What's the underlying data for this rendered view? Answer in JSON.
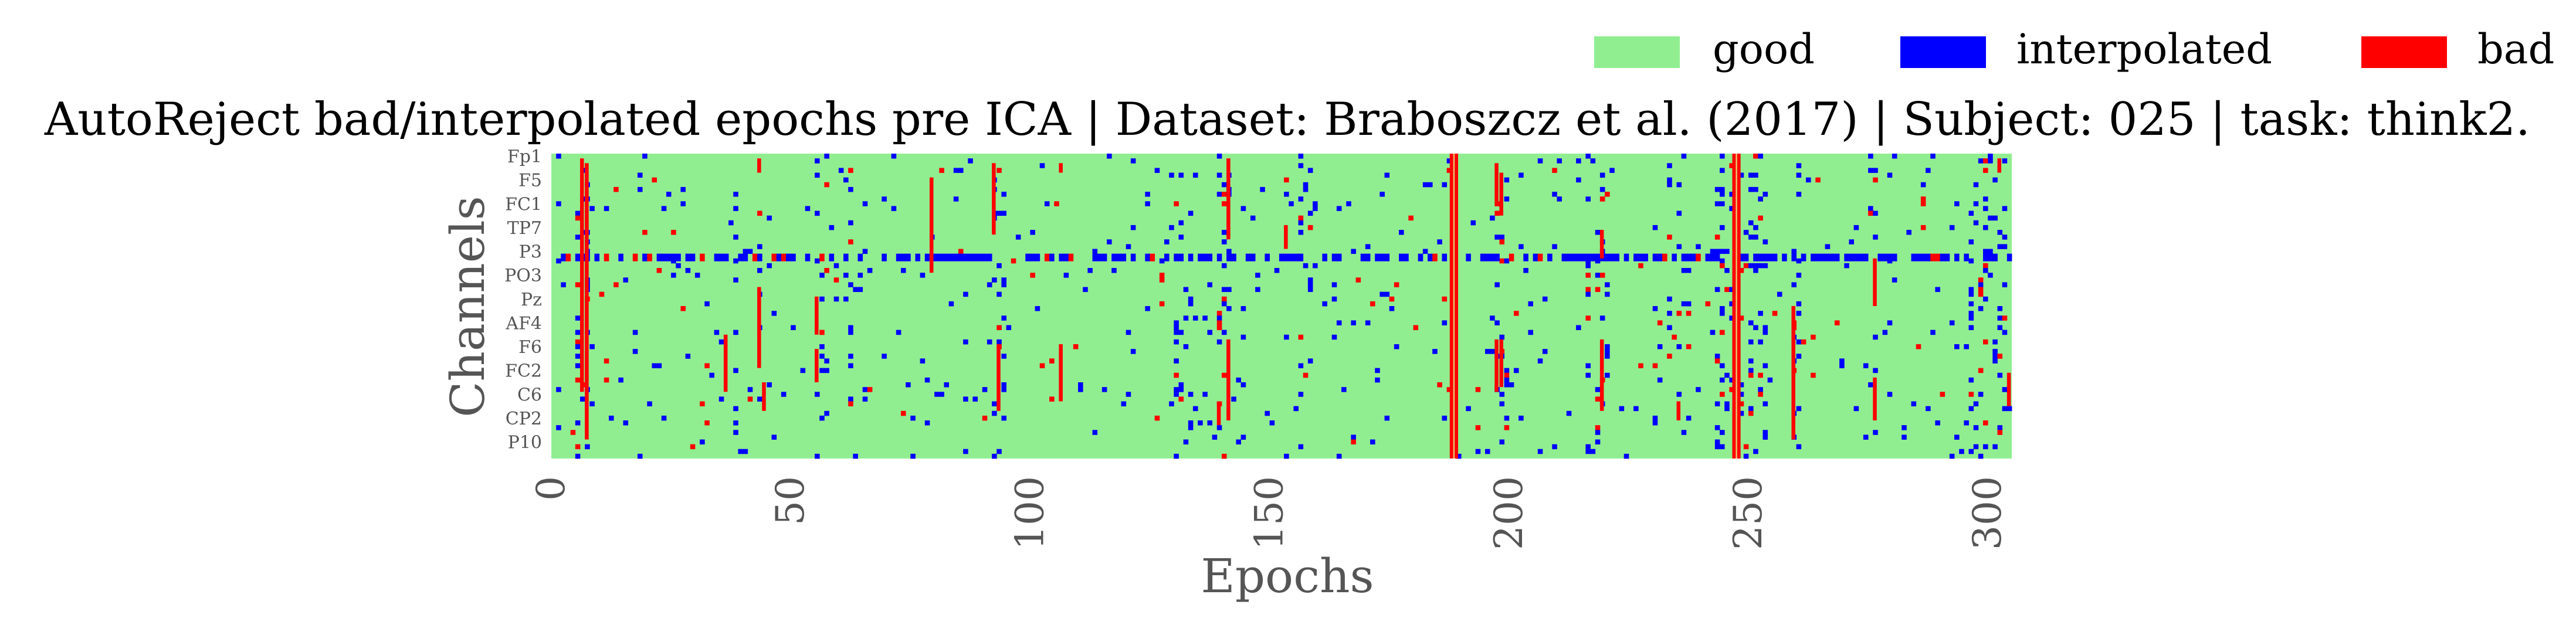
{
  "chart_data": {
    "type": "heatmap",
    "title": "AutoReject bad/interpolated epochs pre ICA | Dataset: Braboszcz et al. (2017) | Subject: 025 | task: think2.",
    "xlabel": "Epochs",
    "ylabel": "Channels",
    "x_ticks": [
      0,
      50,
      100,
      150,
      200,
      250,
      300
    ],
    "xlim": [
      0,
      305
    ],
    "channel_tick_labels": [
      "Fp1",
      "F5",
      "FC1",
      "TP7",
      "P3",
      "PO3",
      "Pz",
      "AF4",
      "F6",
      "FC2",
      "C6",
      "CP2",
      "P10"
    ],
    "n_channels": 64,
    "n_epochs": 305,
    "grid": false,
    "legend": {
      "placement": "top-right",
      "entries": [
        {
          "label": "good",
          "color": "#90EE90"
        },
        {
          "label": "interpolated",
          "color": "#0000FF"
        },
        {
          "label": "bad",
          "color": "#FF0000"
        }
      ]
    },
    "bad_epochs_full": [
      188,
      247
    ],
    "bad_segments": [
      {
        "epoch": 6,
        "channels": [
          1,
          50
        ]
      },
      {
        "epoch": 7,
        "channels": [
          2,
          60
        ]
      },
      {
        "epoch": 43,
        "channels": [
          1,
          4
        ]
      },
      {
        "epoch": 43,
        "channels": [
          28,
          45
        ]
      },
      {
        "epoch": 44,
        "channels": [
          48,
          54
        ]
      },
      {
        "epoch": 36,
        "channels": [
          38,
          50
        ]
      },
      {
        "epoch": 55,
        "channels": [
          30,
          38
        ]
      },
      {
        "epoch": 55,
        "channels": [
          41,
          48
        ]
      },
      {
        "epoch": 79,
        "channels": [
          5,
          25
        ]
      },
      {
        "epoch": 92,
        "channels": [
          2,
          17
        ]
      },
      {
        "epoch": 93,
        "channels": [
          41,
          54
        ]
      },
      {
        "epoch": 106,
        "channels": [
          2,
          4
        ]
      },
      {
        "epoch": 106,
        "channels": [
          40,
          52
        ]
      },
      {
        "epoch": 141,
        "channels": [
          1,
          18
        ]
      },
      {
        "epoch": 141,
        "channels": [
          39,
          56
        ]
      },
      {
        "epoch": 139,
        "channels": [
          52,
          57
        ]
      },
      {
        "epoch": 153,
        "channels": [
          15,
          20
        ]
      },
      {
        "epoch": 197,
        "channels": [
          2,
          10
        ]
      },
      {
        "epoch": 198,
        "channels": [
          4,
          13
        ]
      },
      {
        "epoch": 197,
        "channels": [
          39,
          50
        ]
      },
      {
        "epoch": 198,
        "channels": [
          39,
          49
        ]
      },
      {
        "epoch": 219,
        "channels": [
          16,
          22
        ]
      },
      {
        "epoch": 219,
        "channels": [
          39,
          54
        ]
      },
      {
        "epoch": 235,
        "channels": [
          52,
          56
        ]
      },
      {
        "epoch": 259,
        "channels": [
          32,
          60
        ]
      },
      {
        "epoch": 276,
        "channels": [
          22,
          32
        ]
      },
      {
        "epoch": 276,
        "channels": [
          47,
          56
        ]
      },
      {
        "epoch": 302,
        "channels": [
          1,
          4
        ]
      },
      {
        "epoch": 304,
        "channels": [
          46,
          53
        ]
      }
    ]
  }
}
